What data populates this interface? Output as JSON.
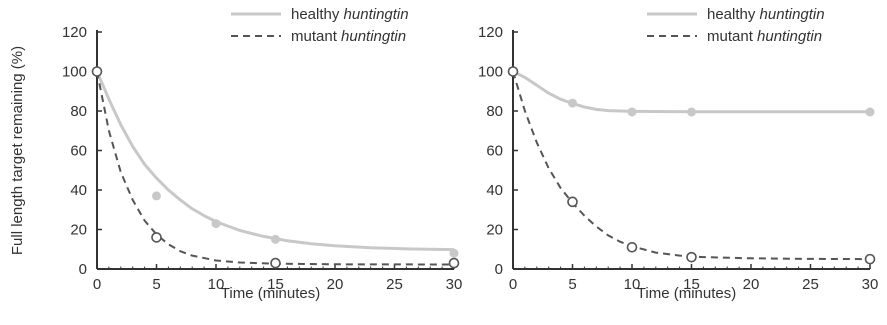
{
  "chart_data": [
    {
      "type": "line",
      "title": "",
      "xlabel": "Time (minutes)",
      "ylabel": "Full length target remaining (%)",
      "xlim": [
        0,
        30
      ],
      "ylim": [
        0,
        120
      ],
      "xticks": [
        "0",
        "5",
        "10",
        "15",
        "20",
        "25",
        "30"
      ],
      "yticks": [
        "0",
        "20",
        "40",
        "60",
        "80",
        "100",
        "120"
      ],
      "grid": false,
      "legend_position": "top-right",
      "series": [
        {
          "name_prefix": "healthy ",
          "name_italic": "huntingtin",
          "color": "#c8c8c8",
          "line_style": "solid",
          "marker": "filled-circle",
          "points": [
            [
              0,
              100
            ],
            [
              5,
              37
            ],
            [
              10,
              23
            ],
            [
              15,
              15
            ],
            [
              30,
              8
            ]
          ],
          "fit": [
            [
              0,
              100
            ],
            [
              1,
              86
            ],
            [
              2,
              73
            ],
            [
              3,
              62
            ],
            [
              4,
              53
            ],
            [
              5,
              46
            ],
            [
              6,
              40
            ],
            [
              7,
              35
            ],
            [
              8,
              30.5
            ],
            [
              9,
              27
            ],
            [
              10,
              24
            ],
            [
              12,
              19.5
            ],
            [
              14,
              16.5
            ],
            [
              16,
              14.3
            ],
            [
              18,
              12.8
            ],
            [
              20,
              11.8
            ],
            [
              23,
              10.8
            ],
            [
              26,
              10.2
            ],
            [
              30,
              9.8
            ]
          ]
        },
        {
          "name_prefix": "mutant ",
          "name_italic": "huntingtin",
          "color": "#555555",
          "line_style": "dashed",
          "marker": "open-circle",
          "points": [
            [
              0,
              100
            ],
            [
              5,
              16
            ],
            [
              15,
              3
            ],
            [
              30,
              3
            ]
          ],
          "fit": [
            [
              0,
              100
            ],
            [
              1,
              70
            ],
            [
              2,
              49
            ],
            [
              3,
              35
            ],
            [
              4,
              24.5
            ],
            [
              5,
              17.5
            ],
            [
              6,
              12.5
            ],
            [
              7,
              9
            ],
            [
              8,
              6.8
            ],
            [
              10,
              4.3
            ],
            [
              12,
              3.3
            ],
            [
              15,
              2.7
            ],
            [
              20,
              2.4
            ],
            [
              30,
              2.3
            ]
          ]
        }
      ]
    },
    {
      "type": "line",
      "title": "",
      "xlabel": "Time (minutes)",
      "ylabel": "",
      "xlim": [
        0,
        30
      ],
      "ylim": [
        0,
        120
      ],
      "xticks": [
        "0",
        "5",
        "10",
        "15",
        "20",
        "25",
        "30"
      ],
      "yticks": [
        "0",
        "20",
        "40",
        "60",
        "80",
        "100",
        "120"
      ],
      "grid": false,
      "legend_position": "top-right",
      "series": [
        {
          "name_prefix": "healthy ",
          "name_italic": "huntingtin",
          "color": "#c8c8c8",
          "line_style": "solid",
          "marker": "filled-circle",
          "points": [
            [
              0,
              100
            ],
            [
              5,
              84
            ],
            [
              10,
              79.5
            ],
            [
              15,
              79.5
            ],
            [
              30,
              79.5
            ]
          ],
          "fit": [
            [
              0,
              100
            ],
            [
              1,
              97
            ],
            [
              2,
              93
            ],
            [
              3,
              89
            ],
            [
              4,
              86
            ],
            [
              5,
              83.8
            ],
            [
              6,
              82
            ],
            [
              7,
              80.8
            ],
            [
              8,
              80.2
            ],
            [
              10,
              79.8
            ],
            [
              15,
              79.6
            ],
            [
              30,
              79.6
            ]
          ]
        },
        {
          "name_prefix": "mutant ",
          "name_italic": "huntingtin",
          "color": "#555555",
          "line_style": "dashed",
          "marker": "open-circle",
          "points": [
            [
              0,
              100
            ],
            [
              5,
              34
            ],
            [
              10,
              11
            ],
            [
              15,
              6
            ],
            [
              30,
              5
            ]
          ],
          "fit": [
            [
              0,
              100
            ],
            [
              1,
              80
            ],
            [
              2,
              64
            ],
            [
              3,
              51
            ],
            [
              4,
              41
            ],
            [
              5,
              33.5
            ],
            [
              6,
              27
            ],
            [
              7,
              21.5
            ],
            [
              8,
              17
            ],
            [
              9,
              13.8
            ],
            [
              10,
              11.5
            ],
            [
              12,
              8.3
            ],
            [
              14,
              6.8
            ],
            [
              16,
              6
            ],
            [
              20,
              5.4
            ],
            [
              25,
              5.1
            ],
            [
              30,
              5
            ]
          ]
        }
      ]
    }
  ]
}
